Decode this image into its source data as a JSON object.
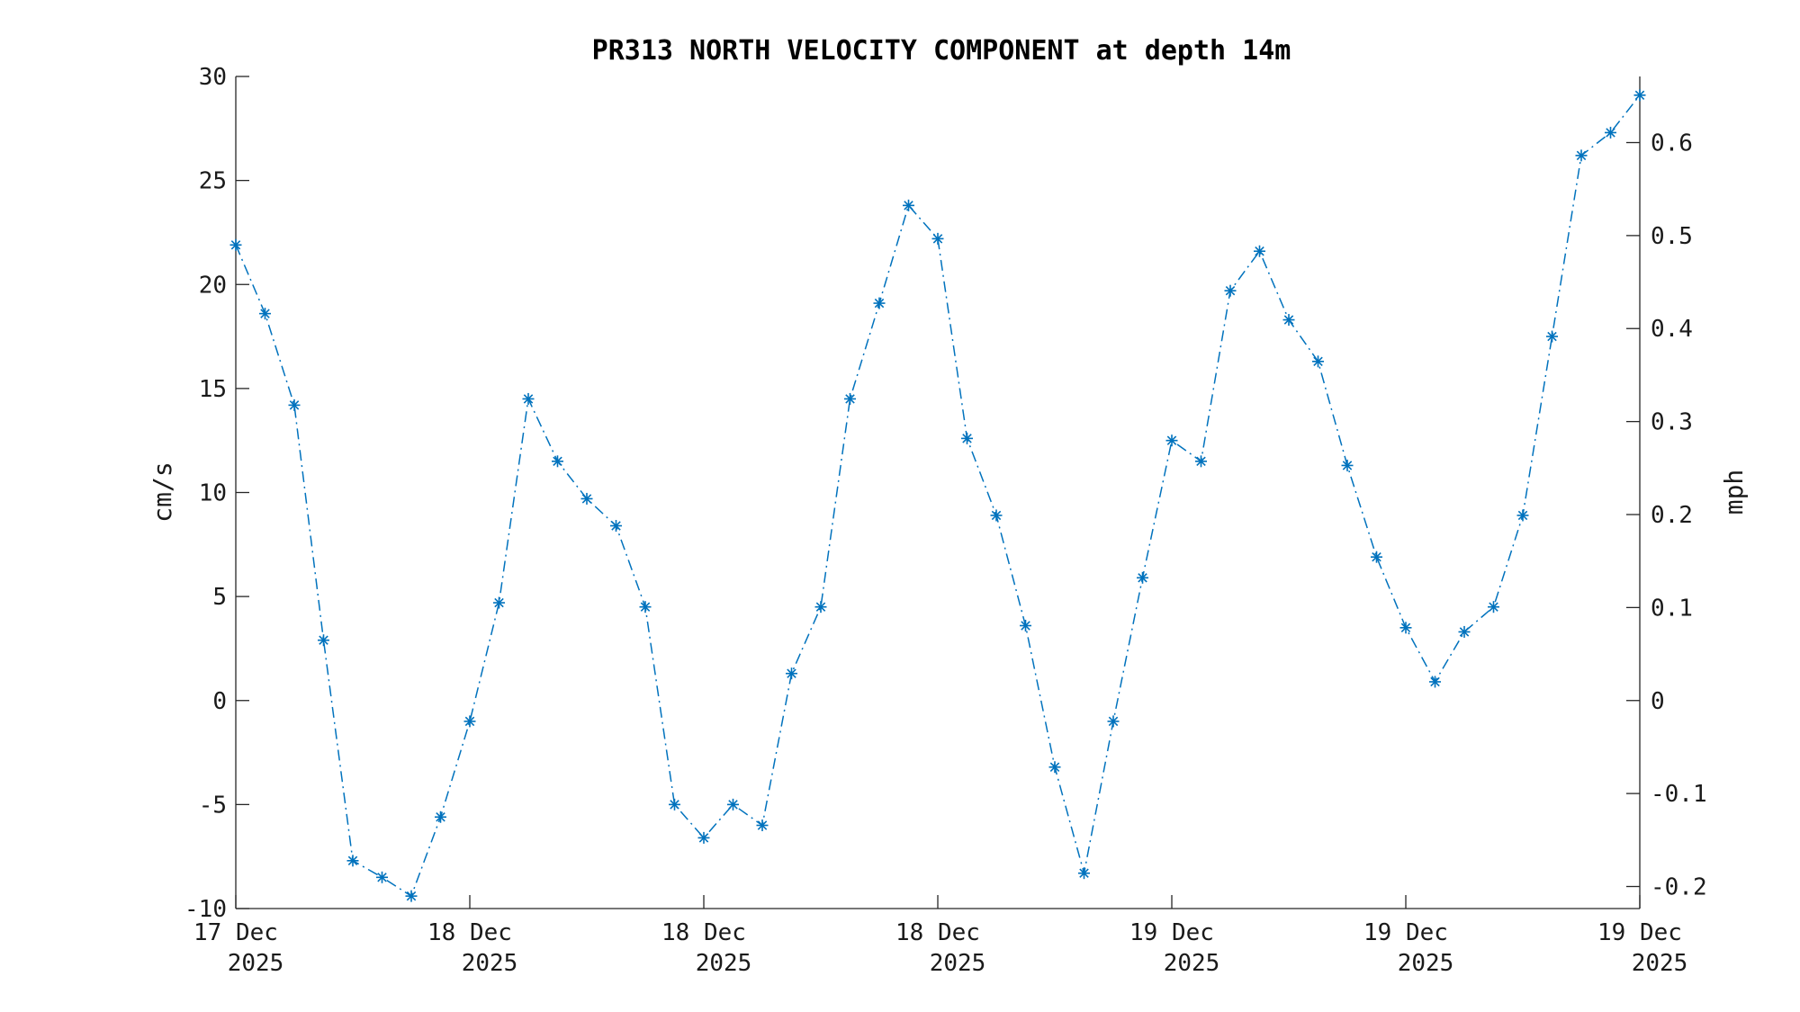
{
  "chart_data": {
    "type": "line",
    "title": "PR313 NORTH VELOCITY COMPONENT at depth 14m",
    "ylabel": "cm/s",
    "y2label": "mph",
    "ylim": [
      -10,
      30
    ],
    "y2lim": [
      -0.2237,
      0.6711
    ],
    "yticks": [
      30,
      25,
      20,
      15,
      10,
      5,
      0,
      -5,
      -10
    ],
    "yticks_labels": [
      "30",
      "25",
      "20",
      "15",
      "10",
      "5",
      "0",
      "-5",
      "-10"
    ],
    "y2ticks": [
      0.6,
      0.5,
      0.4,
      0.3,
      0.2,
      0.1,
      0,
      -0.1,
      -0.2
    ],
    "y2ticks_labels": [
      "0.6",
      "0.5",
      "0.4",
      "0.3",
      "0.2",
      "0.1",
      "0",
      "-0.1",
      "-0.2"
    ],
    "xticks": [
      {
        "line1": "17 Dec",
        "line2": "2025"
      },
      {
        "line1": "18 Dec",
        "line2": "2025"
      },
      {
        "line1": "18 Dec",
        "line2": "2025"
      },
      {
        "line1": "18 Dec",
        "line2": "2025"
      },
      {
        "line1": "19 Dec",
        "line2": "2025"
      },
      {
        "line1": "19 Dec",
        "line2": "2025"
      },
      {
        "line1": "19 Dec",
        "line2": "2025"
      }
    ],
    "grid": false,
    "line_style": "dash-dot",
    "marker": "asterisk",
    "color": "#0072bd",
    "series": [
      {
        "values": [
          21.9,
          18.6,
          14.2,
          2.9,
          -7.7,
          -8.5,
          -9.4,
          -5.6,
          -1.0,
          4.7,
          14.5,
          11.5,
          9.7,
          8.4,
          4.5,
          -5.0,
          -6.6,
          -5.0,
          -6.0,
          1.3,
          4.5,
          14.5,
          19.1,
          23.8,
          22.2,
          12.6,
          8.9,
          3.6,
          -3.2,
          -8.3,
          -1.0,
          5.9,
          12.5,
          11.5,
          19.7,
          21.6,
          18.3,
          16.3,
          11.3,
          6.9,
          3.5,
          0.9,
          3.3,
          4.5,
          8.9,
          17.5,
          26.2,
          27.3,
          29.1
        ]
      }
    ]
  }
}
